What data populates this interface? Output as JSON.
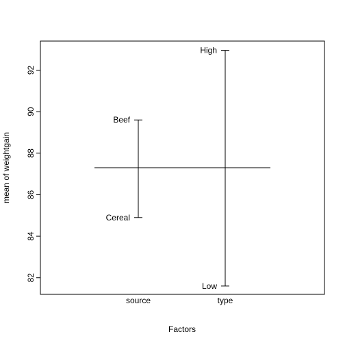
{
  "chart_data": {
    "type": "factor-means",
    "title": "",
    "xlabel": "Factors",
    "ylabel": "mean of weightgain",
    "ylim": [
      81.2,
      93.4
    ],
    "yticks": [
      82,
      84,
      86,
      88,
      90,
      92
    ],
    "grand_mean": 87.3,
    "factors": [
      {
        "name": "source",
        "levels": [
          {
            "label": "Beef",
            "value": 89.6
          },
          {
            "label": "Cereal",
            "value": 84.9
          }
        ]
      },
      {
        "name": "type",
        "levels": [
          {
            "label": "High",
            "value": 92.95
          },
          {
            "label": "Low",
            "value": 81.6
          }
        ]
      }
    ]
  }
}
